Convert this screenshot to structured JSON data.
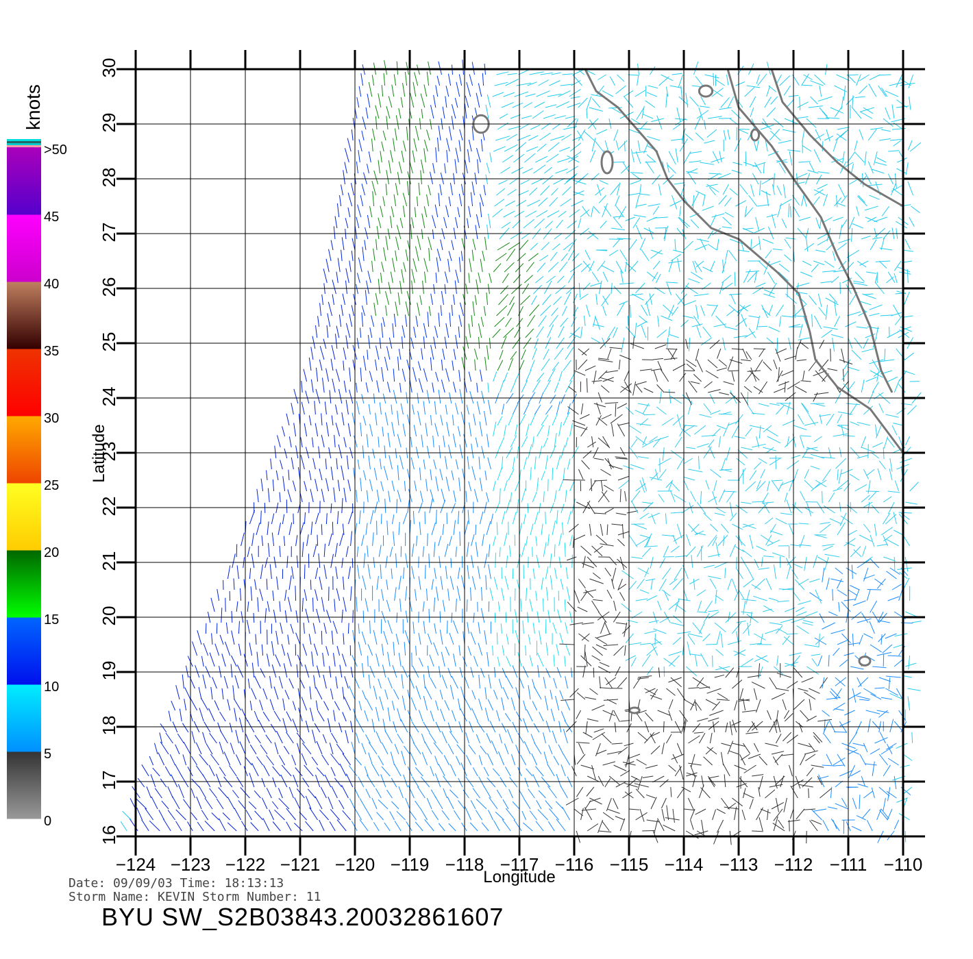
{
  "colorbar": {
    "unit": "knots",
    "labels": [
      ">50",
      "45",
      "40",
      "35",
      "30",
      "25",
      "20",
      "15",
      "10",
      "5",
      "0"
    ],
    "segments": [
      {
        "from": 0,
        "to": 5,
        "top": "#333333",
        "bottom": "#999999"
      },
      {
        "from": 5,
        "to": 10,
        "top": "#00eeff",
        "bottom": "#0090ff"
      },
      {
        "from": 10,
        "to": 15,
        "top": "#0066ff",
        "bottom": "#0010ee"
      },
      {
        "from": 15,
        "to": 20,
        "top": "#006600",
        "bottom": "#00ff00"
      },
      {
        "from": 20,
        "to": 25,
        "top": "#ffff22",
        "bottom": "#ffcc00"
      },
      {
        "from": 25,
        "to": 30,
        "top": "#ffaa00",
        "bottom": "#ee4400"
      },
      {
        "from": 30,
        "to": 35,
        "top": "#ee3300",
        "bottom": "#ff0000"
      },
      {
        "from": 35,
        "to": 40,
        "top": "#c08060",
        "bottom": "#330000"
      },
      {
        "from": 40,
        "to": 45,
        "top": "#ff00ff",
        "bottom": "#cc00cc"
      },
      {
        "from": 45,
        "to": 50,
        "top": "#aa00bb",
        "bottom": "#5500cc"
      }
    ],
    "top_stripes": [
      "#ff99aa",
      "#00cccc",
      "#226666",
      "#00dddd"
    ]
  },
  "map": {
    "lon_range": [
      -124,
      -110
    ],
    "lat_range": [
      16,
      30
    ],
    "x_ticks": [
      "−124",
      "−123",
      "−122",
      "−121",
      "−120",
      "−119",
      "−118",
      "−117",
      "−116",
      "−115",
      "−114",
      "−113",
      "−112",
      "−111",
      "−110"
    ],
    "y_ticks": [
      "16",
      "17",
      "18",
      "19",
      "20",
      "21",
      "22",
      "23",
      "24",
      "25",
      "26",
      "27",
      "28",
      "29",
      "30"
    ],
    "xlabel": "Longitude",
    "ylabel": "Latitude",
    "grid": true,
    "coastline_color": "#777777",
    "swath_left_edge": [
      [
        -124.3,
        16.0
      ],
      [
        -120.9,
        24.5
      ],
      [
        -119.9,
        30.0
      ]
    ],
    "coastline_mainland": [
      [
        -115.8,
        30.0
      ],
      [
        -115.6,
        29.6
      ],
      [
        -115.2,
        29.3
      ],
      [
        -114.5,
        28.5
      ],
      [
        -114.3,
        28.0
      ],
      [
        -114.0,
        27.6
      ],
      [
        -113.5,
        27.1
      ],
      [
        -113.0,
        26.9
      ],
      [
        -112.3,
        26.3
      ],
      [
        -111.9,
        25.9
      ],
      [
        -111.7,
        25.2
      ],
      [
        -111.6,
        24.7
      ],
      [
        -111.2,
        24.2
      ],
      [
        -110.6,
        23.8
      ],
      [
        -110.3,
        23.4
      ],
      [
        -110.0,
        23.0
      ]
    ],
    "coastline_gulf": [
      [
        -112.4,
        30.0
      ],
      [
        -112.2,
        29.4
      ],
      [
        -111.7,
        28.8
      ],
      [
        -111.2,
        28.3
      ],
      [
        -110.7,
        27.9
      ],
      [
        -110.0,
        27.5
      ]
    ],
    "coastline_peninsula_east": [
      [
        -113.2,
        30.0
      ],
      [
        -113.0,
        29.3
      ],
      [
        -112.4,
        28.6
      ],
      [
        -112.0,
        28.0
      ],
      [
        -111.5,
        27.3
      ],
      [
        -111.2,
        26.6
      ],
      [
        -110.9,
        26.0
      ],
      [
        -110.6,
        25.3
      ],
      [
        -110.4,
        24.5
      ],
      [
        -110.2,
        24.1
      ]
    ],
    "islands": [
      [
        -117.7,
        29.0,
        0.14,
        0.16
      ],
      [
        -115.4,
        28.3,
        0.1,
        0.2
      ],
      [
        -113.6,
        29.6,
        0.12,
        0.1
      ],
      [
        -110.7,
        19.2,
        0.1,
        0.08
      ],
      [
        -114.9,
        18.3,
        0.09,
        0.05
      ],
      [
        -112.7,
        28.8,
        0.07,
        0.1
      ]
    ],
    "wind_regions": [
      {
        "lon": [
          -124,
          -120.0
        ],
        "lat": [
          16,
          30
        ],
        "color": "#0022dd"
      },
      {
        "lon": [
          -120.0,
          -117.6
        ],
        "lat": [
          24,
          30
        ],
        "color": "#0033ee"
      },
      {
        "lon": [
          -119.7,
          -118.6
        ],
        "lat": [
          25.4,
          30
        ],
        "color": "#118811"
      },
      {
        "lon": [
          -118.0,
          -116.8
        ],
        "lat": [
          24.4,
          26.8
        ],
        "color": "#118811"
      },
      {
        "lon": [
          -120.0,
          -116.0
        ],
        "lat": [
          16,
          24
        ],
        "color": "#1a8cff"
      },
      {
        "lon": [
          -117.5,
          -115.0
        ],
        "lat": [
          19,
          23.5
        ],
        "color": "#22ddee"
      },
      {
        "lon": [
          -116.0,
          -111.0
        ],
        "lat": [
          16,
          25
        ],
        "color": "#333333"
      },
      {
        "lon": [
          -115.0,
          -110.0
        ],
        "lat": [
          19,
          24
        ],
        "color": "#33ccee"
      },
      {
        "lon": [
          -111.5,
          -110.0
        ],
        "lat": [
          16,
          21
        ],
        "color": "#1a8cff"
      }
    ]
  },
  "footer": {
    "date_line": "Date: 09/09/03   Time: 18:13:13",
    "storm_line": "Storm Name: KEVIN   Storm Number: 11",
    "file_id": "BYU SW_S2B03843.20032861607"
  }
}
